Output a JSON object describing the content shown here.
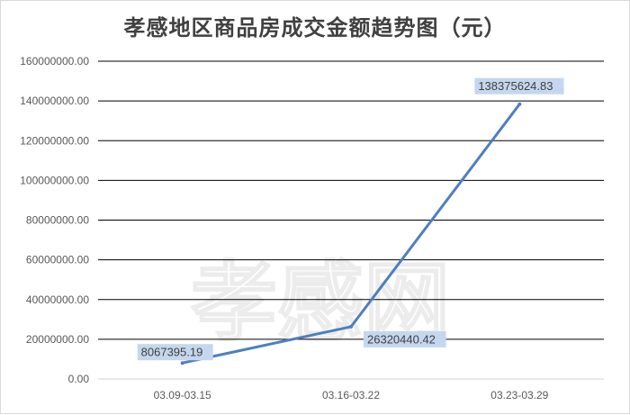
{
  "chart_data": {
    "type": "line",
    "title": "孝感地区商品房成交金额趋势图（元）",
    "categories": [
      "03.09-03.15",
      "03.16-03.22",
      "03.23-03.29"
    ],
    "series": [
      {
        "values": [
          8067395.19,
          26320440.42,
          138375624.83
        ]
      }
    ],
    "data_labels": [
      "8067395.19",
      "26320440.42",
      "138375624.83"
    ],
    "y_ticks": [
      "0.00",
      "20000000.00",
      "40000000.00",
      "60000000.00",
      "80000000.00",
      "100000000.00",
      "120000000.00",
      "140000000.00",
      "160000000.00"
    ],
    "ylim": [
      0,
      160000000
    ],
    "grid": true,
    "legend": "none",
    "colors": {
      "line": "#4f7fbf",
      "gridline": "#000000",
      "label_bg": "#c5d7ee",
      "axis_text": "#595959"
    },
    "watermark": "孝感网"
  }
}
